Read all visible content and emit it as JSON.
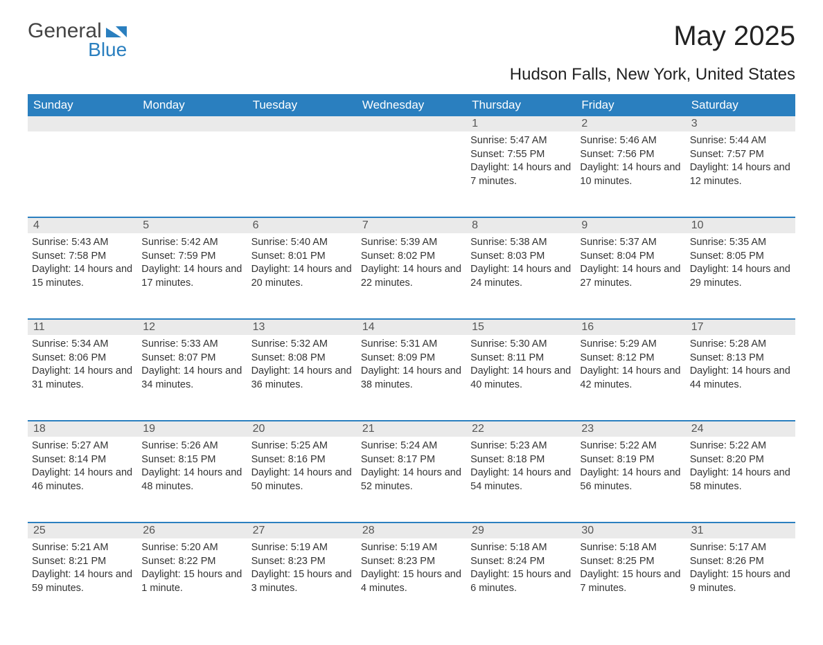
{
  "logo": {
    "word1": "General",
    "word2": "Blue"
  },
  "title": "May 2025",
  "subtitle": "Hudson Falls, New York, United States",
  "colors": {
    "header_bg": "#2a7fbf",
    "header_text": "#ffffff",
    "daynum_bg": "#eaeaea",
    "daynum_text": "#555555",
    "body_text": "#333333",
    "rule": "#2a7fbf",
    "page_bg": "#ffffff"
  },
  "fonts": {
    "title_size": 40,
    "subtitle_size": 24,
    "header_size": 17,
    "daynum_size": 16,
    "body_size": 14.5
  },
  "dayHeaders": [
    "Sunday",
    "Monday",
    "Tuesday",
    "Wednesday",
    "Thursday",
    "Friday",
    "Saturday"
  ],
  "weeks": [
    [
      null,
      null,
      null,
      null,
      {
        "n": "1",
        "sr": "Sunrise: 5:47 AM",
        "ss": "Sunset: 7:55 PM",
        "dl": "Daylight: 14 hours and 7 minutes."
      },
      {
        "n": "2",
        "sr": "Sunrise: 5:46 AM",
        "ss": "Sunset: 7:56 PM",
        "dl": "Daylight: 14 hours and 10 minutes."
      },
      {
        "n": "3",
        "sr": "Sunrise: 5:44 AM",
        "ss": "Sunset: 7:57 PM",
        "dl": "Daylight: 14 hours and 12 minutes."
      }
    ],
    [
      {
        "n": "4",
        "sr": "Sunrise: 5:43 AM",
        "ss": "Sunset: 7:58 PM",
        "dl": "Daylight: 14 hours and 15 minutes."
      },
      {
        "n": "5",
        "sr": "Sunrise: 5:42 AM",
        "ss": "Sunset: 7:59 PM",
        "dl": "Daylight: 14 hours and 17 minutes."
      },
      {
        "n": "6",
        "sr": "Sunrise: 5:40 AM",
        "ss": "Sunset: 8:01 PM",
        "dl": "Daylight: 14 hours and 20 minutes."
      },
      {
        "n": "7",
        "sr": "Sunrise: 5:39 AM",
        "ss": "Sunset: 8:02 PM",
        "dl": "Daylight: 14 hours and 22 minutes."
      },
      {
        "n": "8",
        "sr": "Sunrise: 5:38 AM",
        "ss": "Sunset: 8:03 PM",
        "dl": "Daylight: 14 hours and 24 minutes."
      },
      {
        "n": "9",
        "sr": "Sunrise: 5:37 AM",
        "ss": "Sunset: 8:04 PM",
        "dl": "Daylight: 14 hours and 27 minutes."
      },
      {
        "n": "10",
        "sr": "Sunrise: 5:35 AM",
        "ss": "Sunset: 8:05 PM",
        "dl": "Daylight: 14 hours and 29 minutes."
      }
    ],
    [
      {
        "n": "11",
        "sr": "Sunrise: 5:34 AM",
        "ss": "Sunset: 8:06 PM",
        "dl": "Daylight: 14 hours and 31 minutes."
      },
      {
        "n": "12",
        "sr": "Sunrise: 5:33 AM",
        "ss": "Sunset: 8:07 PM",
        "dl": "Daylight: 14 hours and 34 minutes."
      },
      {
        "n": "13",
        "sr": "Sunrise: 5:32 AM",
        "ss": "Sunset: 8:08 PM",
        "dl": "Daylight: 14 hours and 36 minutes."
      },
      {
        "n": "14",
        "sr": "Sunrise: 5:31 AM",
        "ss": "Sunset: 8:09 PM",
        "dl": "Daylight: 14 hours and 38 minutes."
      },
      {
        "n": "15",
        "sr": "Sunrise: 5:30 AM",
        "ss": "Sunset: 8:11 PM",
        "dl": "Daylight: 14 hours and 40 minutes."
      },
      {
        "n": "16",
        "sr": "Sunrise: 5:29 AM",
        "ss": "Sunset: 8:12 PM",
        "dl": "Daylight: 14 hours and 42 minutes."
      },
      {
        "n": "17",
        "sr": "Sunrise: 5:28 AM",
        "ss": "Sunset: 8:13 PM",
        "dl": "Daylight: 14 hours and 44 minutes."
      }
    ],
    [
      {
        "n": "18",
        "sr": "Sunrise: 5:27 AM",
        "ss": "Sunset: 8:14 PM",
        "dl": "Daylight: 14 hours and 46 minutes."
      },
      {
        "n": "19",
        "sr": "Sunrise: 5:26 AM",
        "ss": "Sunset: 8:15 PM",
        "dl": "Daylight: 14 hours and 48 minutes."
      },
      {
        "n": "20",
        "sr": "Sunrise: 5:25 AM",
        "ss": "Sunset: 8:16 PM",
        "dl": "Daylight: 14 hours and 50 minutes."
      },
      {
        "n": "21",
        "sr": "Sunrise: 5:24 AM",
        "ss": "Sunset: 8:17 PM",
        "dl": "Daylight: 14 hours and 52 minutes."
      },
      {
        "n": "22",
        "sr": "Sunrise: 5:23 AM",
        "ss": "Sunset: 8:18 PM",
        "dl": "Daylight: 14 hours and 54 minutes."
      },
      {
        "n": "23",
        "sr": "Sunrise: 5:22 AM",
        "ss": "Sunset: 8:19 PM",
        "dl": "Daylight: 14 hours and 56 minutes."
      },
      {
        "n": "24",
        "sr": "Sunrise: 5:22 AM",
        "ss": "Sunset: 8:20 PM",
        "dl": "Daylight: 14 hours and 58 minutes."
      }
    ],
    [
      {
        "n": "25",
        "sr": "Sunrise: 5:21 AM",
        "ss": "Sunset: 8:21 PM",
        "dl": "Daylight: 14 hours and 59 minutes."
      },
      {
        "n": "26",
        "sr": "Sunrise: 5:20 AM",
        "ss": "Sunset: 8:22 PM",
        "dl": "Daylight: 15 hours and 1 minute."
      },
      {
        "n": "27",
        "sr": "Sunrise: 5:19 AM",
        "ss": "Sunset: 8:23 PM",
        "dl": "Daylight: 15 hours and 3 minutes."
      },
      {
        "n": "28",
        "sr": "Sunrise: 5:19 AM",
        "ss": "Sunset: 8:23 PM",
        "dl": "Daylight: 15 hours and 4 minutes."
      },
      {
        "n": "29",
        "sr": "Sunrise: 5:18 AM",
        "ss": "Sunset: 8:24 PM",
        "dl": "Daylight: 15 hours and 6 minutes."
      },
      {
        "n": "30",
        "sr": "Sunrise: 5:18 AM",
        "ss": "Sunset: 8:25 PM",
        "dl": "Daylight: 15 hours and 7 minutes."
      },
      {
        "n": "31",
        "sr": "Sunrise: 5:17 AM",
        "ss": "Sunset: 8:26 PM",
        "dl": "Daylight: 15 hours and 9 minutes."
      }
    ]
  ]
}
